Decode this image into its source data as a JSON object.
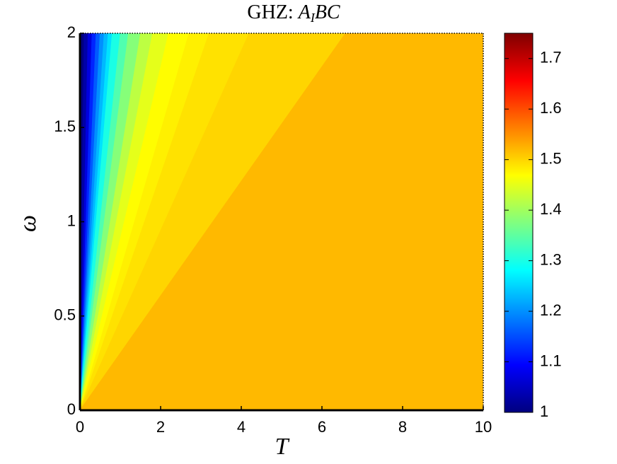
{
  "chart_data": {
    "type": "contour",
    "title": {
      "text": "GHZ:",
      "math": [
        "A",
        "I",
        "BC"
      ]
    },
    "xlabel": "T",
    "ylabel": "ω",
    "xlim": [
      0,
      10
    ],
    "ylim": [
      0,
      2
    ],
    "xticks": [
      0,
      2,
      4,
      6,
      8,
      10
    ],
    "yticks": [
      0,
      0.5,
      1,
      1.5,
      2
    ],
    "colormap": "jet",
    "clim": [
      1,
      1.75
    ],
    "cticks": [
      1,
      1.1,
      1.2,
      1.3,
      1.4,
      1.5,
      1.6,
      1.7
    ],
    "angle_bins": [
      0,
      2.9,
      5.7,
      8.5,
      11.3,
      14.0,
      16.7,
      19.3,
      21.8,
      26.6,
      31.0,
      36.9,
      42.0,
      47.7,
      53.5,
      58.0,
      64.5,
      73.1,
      90
    ],
    "values": [
      1.0,
      1.03,
      1.07,
      1.12,
      1.16,
      1.2,
      1.23,
      1.26,
      1.3,
      1.34,
      1.38,
      1.42,
      1.45,
      1.47,
      1.48,
      1.49,
      1.5,
      1.52
    ]
  }
}
